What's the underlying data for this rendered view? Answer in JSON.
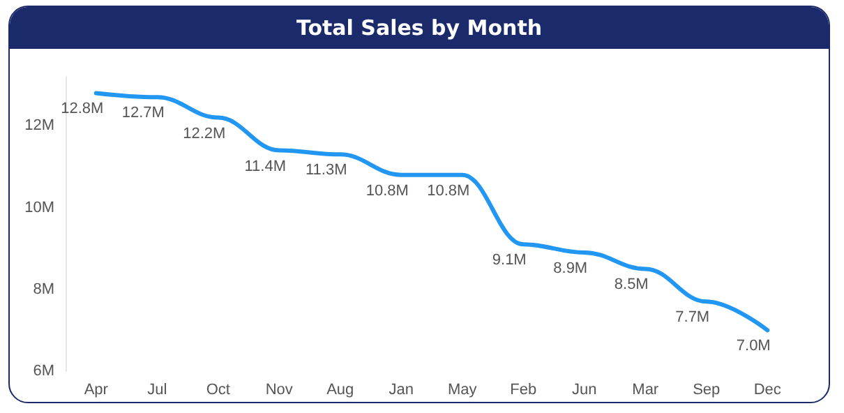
{
  "chart_data": {
    "type": "line",
    "title": "Total Sales by Month",
    "categories": [
      "Apr",
      "Jul",
      "Oct",
      "Nov",
      "Aug",
      "Jan",
      "May",
      "Feb",
      "Jun",
      "Mar",
      "Sep",
      "Dec"
    ],
    "series": [
      {
        "color": "#2196f3",
        "values": [
          12.8,
          12.7,
          12.2,
          11.4,
          11.3,
          10.8,
          10.8,
          9.1,
          8.9,
          8.5,
          7.7,
          7.0
        ],
        "value_labels": [
          "12.8M",
          "12.7M",
          "12.2M",
          "11.4M",
          "11.3M",
          "10.8M",
          "10.8M",
          "9.1M",
          "8.9M",
          "8.5M",
          "7.7M",
          "7.0M"
        ]
      }
    ],
    "yticks": [
      {
        "value": 6,
        "label": "6M"
      },
      {
        "value": 8,
        "label": "8M"
      },
      {
        "value": 10,
        "label": "10M"
      },
      {
        "value": 12,
        "label": "12M"
      }
    ],
    "ylim": [
      6,
      13.2
    ],
    "grid": false,
    "marker": "none",
    "line_style": "solid"
  }
}
